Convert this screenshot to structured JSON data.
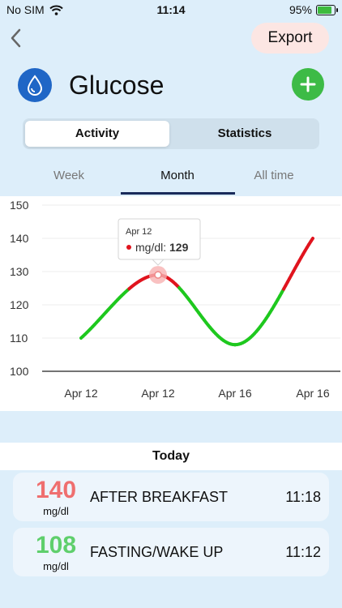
{
  "status": {
    "carrier": "No SIM",
    "time": "11:14",
    "battery": "95%",
    "battery_level": 0.95
  },
  "header": {
    "export_label": "Export",
    "title": "Glucose"
  },
  "segments": {
    "active": "Activity",
    "other": "Statistics"
  },
  "periods": {
    "week": "Week",
    "month": "Month",
    "all": "All time"
  },
  "chart_data": {
    "type": "line",
    "x": [
      "Apr 12",
      "Apr 12",
      "Apr 16",
      "Apr 16"
    ],
    "y": [
      110,
      129,
      108,
      140
    ],
    "ylim": [
      100,
      150
    ],
    "yticks": [
      100,
      110,
      120,
      130,
      140,
      150
    ],
    "line_color_normal": "#1ec81e",
    "line_color_high": "#e0141e",
    "high_threshold": 125,
    "tooltip": {
      "date": "Apr 12",
      "unit": "mg/dl:",
      "value": "129"
    }
  },
  "today": {
    "heading": "Today",
    "entries": [
      {
        "value": "140",
        "unit": "mg/dl",
        "label": "AFTER BREAKFAST",
        "time": "11:18",
        "color": "#ef6f6f"
      },
      {
        "value": "108",
        "unit": "mg/dl",
        "label": "FASTING/WAKE UP",
        "time": "11:12",
        "color": "#5fcf6c"
      }
    ]
  }
}
